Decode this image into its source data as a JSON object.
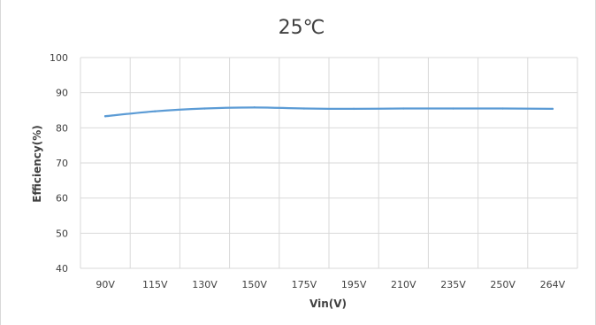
{
  "chart_data": {
    "type": "line",
    "title": "25℃",
    "xlabel": "Vin(V)",
    "ylabel": "Efficiency(%)",
    "categories": [
      "90V",
      "115V",
      "130V",
      "150V",
      "175V",
      "195V",
      "210V",
      "235V",
      "250V",
      "264V"
    ],
    "series": [
      {
        "values": [
          83.3,
          84.7,
          85.5,
          85.8,
          85.5,
          85.4,
          85.5,
          85.5,
          85.5,
          85.4
        ]
      }
    ],
    "ylim": [
      40,
      100
    ],
    "yticks": [
      40,
      50,
      60,
      70,
      80,
      90,
      100
    ],
    "grid": "vertical-and-horizontal",
    "legend": "none",
    "colors": {
      "line": "#5b9bd5",
      "grid": "#d9d9d9",
      "text": "#404040"
    }
  }
}
